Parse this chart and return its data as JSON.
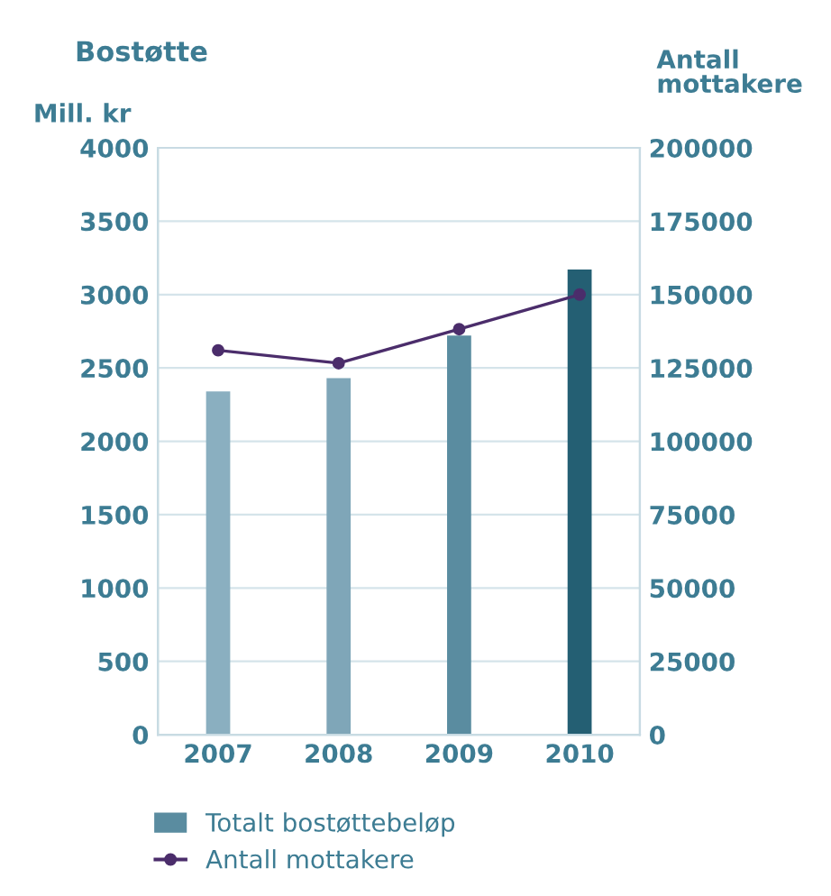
{
  "chart_data": {
    "type": "bar",
    "title": "Bostøtte",
    "ylabel": "Mill. kr",
    "y2label": "Antall mottakere",
    "categories": [
      "2007",
      "2008",
      "2009",
      "2010"
    ],
    "series": [
      {
        "name": "Totalt bostøttebeløp",
        "colors": [
          "#8aafc0",
          "#7fa6b8",
          "#5a8ca0",
          "#245f73"
        ],
        "color": "#5a8ca0",
        "values": [
          2340,
          2430,
          2720,
          3170
        ]
      },
      {
        "name": "Antall mottakere",
        "type": "line",
        "axis": "y2",
        "color": "#4b2d6b",
        "marker": "circle",
        "values": [
          131000,
          126600,
          138200,
          150000
        ]
      }
    ],
    "ylim": [
      0,
      4000
    ],
    "yticks": [
      0,
      500,
      1000,
      1500,
      2000,
      2500,
      3000,
      3500,
      4000
    ],
    "y2lim": [
      0,
      200000
    ],
    "y2ticks": [
      0,
      25000,
      50000,
      75000,
      100000,
      125000,
      150000,
      175000,
      200000
    ],
    "grid": "y",
    "legend": "bottom"
  }
}
